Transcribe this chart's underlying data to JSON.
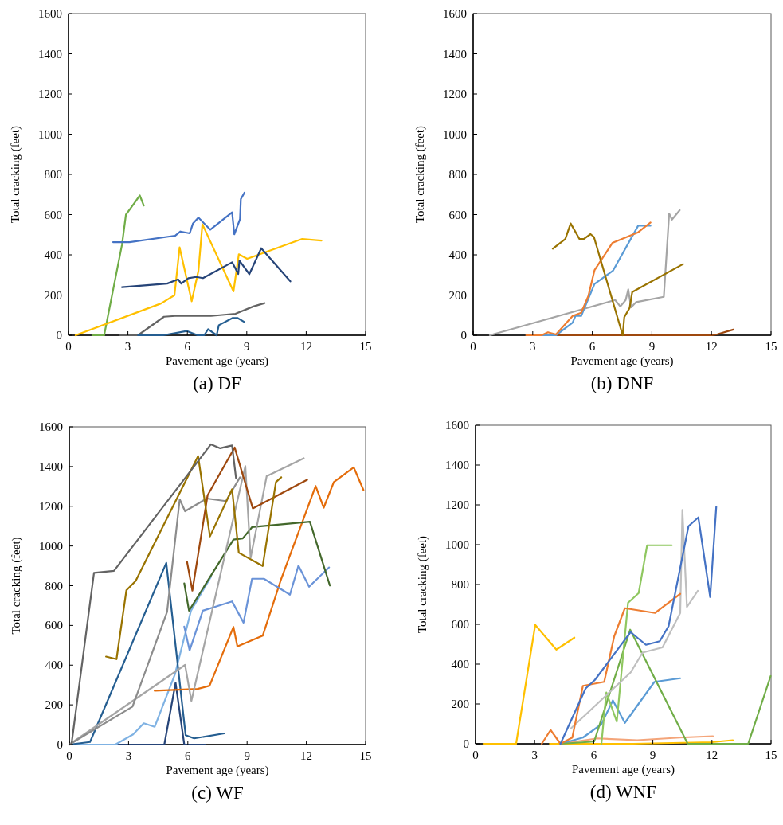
{
  "chart_data": [
    {
      "type": "line",
      "title": "(a) DF",
      "xlabel": "Pavement age (years)",
      "ylabel": "Total cracking (feet)",
      "xlim": [
        0,
        15
      ],
      "xticks": [
        0,
        3,
        6,
        9,
        12,
        15
      ],
      "ylim": [
        0,
        1600
      ],
      "yticks": [
        0,
        200,
        400,
        600,
        800,
        1000,
        1200,
        1400,
        1600
      ],
      "series": [
        {
          "color": "#70ad47",
          "x": [
            1.2,
            1.8,
            2.7,
            2.9,
            3.2,
            3.6,
            3.8
          ],
          "values": [
            0,
            0,
            450,
            600,
            640,
            695,
            645
          ]
        },
        {
          "color": "#4472c4",
          "x": [
            2.25,
            3.08,
            5.38,
            5.65,
            6.12,
            6.28,
            6.56,
            7.16,
            8.26,
            8.37,
            8.66,
            8.7,
            8.88
          ],
          "values": [
            463,
            463,
            495,
            516,
            507,
            555,
            585,
            525,
            611,
            502,
            578,
            677,
            709
          ]
        },
        {
          "color": "#ffc000",
          "x": [
            0.36,
            4.67,
            5.35,
            5.61,
            6.22,
            6.56,
            6.76,
            8.33,
            8.6,
            9.02,
            11.8,
            12.77
          ],
          "values": [
            0,
            158,
            199,
            437,
            169,
            321,
            552,
            218,
            403,
            380,
            479,
            471
          ]
        },
        {
          "color": "#264478",
          "x": [
            2.7,
            4.98,
            5.54,
            5.69,
            6.05,
            6.45,
            6.79,
            8.26,
            8.57,
            8.63,
            9.13,
            9.73,
            11.2
          ],
          "values": [
            239,
            257,
            278,
            257,
            284,
            290,
            284,
            363,
            305,
            371,
            304,
            433,
            268
          ]
        },
        {
          "color": "#636363",
          "x": [
            2.61,
            3.51,
            4.82,
            5.38,
            7.19,
            8.43,
            9.33,
            9.9
          ],
          "values": [
            0,
            0,
            92,
            96,
            96,
            107,
            143,
            160
          ]
        },
        {
          "color": "#255e91",
          "x": [
            3.51,
            4.78,
            5.98,
            6.52,
            6.85,
            7.05,
            7.48,
            7.59,
            8.29,
            8.53,
            8.86
          ],
          "values": [
            0,
            0,
            21,
            0,
            0,
            30,
            0,
            50,
            86,
            86,
            67
          ]
        }
      ]
    },
    {
      "type": "line",
      "title": "(b) DNF",
      "xlabel": "Pavement age (years)",
      "ylabel": "Total cracking (feet)",
      "xlim": [
        0,
        15
      ],
      "xticks": [
        0,
        3,
        6,
        9,
        12,
        15
      ],
      "ylim": [
        0,
        1600
      ],
      "yticks": [
        0,
        200,
        400,
        600,
        800,
        1000,
        1200,
        1400,
        1600
      ],
      "series": [
        {
          "color": "#9e480e",
          "x": [
            4.2,
            12,
            12.3,
            13.1
          ],
          "values": [
            0,
            0,
            5,
            28
          ]
        },
        {
          "color": "#a5a5a5",
          "x": [
            0.84,
            7.15,
            7.41,
            7.68,
            7.81,
            7.95,
            8.21,
            9.6,
            9.87,
            10.01,
            10.4
          ],
          "values": [
            0,
            175,
            143,
            175,
            228,
            139,
            165,
            191,
            605,
            575,
            622
          ]
        },
        {
          "color": "#5b9bd5",
          "x": [
            3.17,
            4.17,
            5.01,
            5.15,
            5.44,
            6.11,
            7.04,
            8.31,
            8.93
          ],
          "values": [
            0,
            0,
            63,
            96,
            96,
            255,
            321,
            545,
            545
          ]
        },
        {
          "color": "#ed7d31",
          "x": [
            2.67,
            3.44,
            3.77,
            4.17,
            5.01,
            5.44,
            5.8,
            6.11,
            7.01,
            8.31,
            8.93
          ],
          "values": [
            0,
            0,
            15,
            4,
            96,
            112,
            195,
            323,
            459,
            512,
            561
          ]
        },
        {
          "color": "#997300",
          "x": [
            4.01,
            4.64,
            4.91,
            5.35,
            5.57,
            5.91,
            6.08,
            7.53,
            7.61,
            7.88,
            8.01,
            10.57
          ],
          "values": [
            430,
            479,
            556,
            479,
            479,
            503,
            489,
            0,
            90,
            136,
            215,
            354
          ]
        }
      ]
    },
    {
      "type": "line",
      "title": "(c) WF",
      "xlabel": "Pavement age (years)",
      "ylabel": "Total cracking (feet)",
      "xlim": [
        0,
        15
      ],
      "xticks": [
        0,
        3,
        6,
        9,
        12,
        15
      ],
      "ylim": [
        0,
        1600
      ],
      "yticks": [
        0,
        200,
        400,
        600,
        800,
        1000,
        1200,
        1400,
        1600
      ],
      "series": [
        {
          "color": "#264478",
          "x": [
            0,
            4.81,
            5.38,
            5.82,
            6.9
          ],
          "values": [
            0,
            0,
            311,
            0,
            0
          ]
        },
        {
          "color": "#7fb2e3",
          "x": [
            0,
            2.33,
            3.23,
            3.77,
            4.32,
            5.35,
            6.16,
            7.17
          ],
          "values": [
            0,
            0,
            51,
            107,
            89,
            354,
            674,
            844
          ]
        },
        {
          "color": "#255e91",
          "x": [
            0,
            1.05,
            4.91,
            5.89,
            6.32,
            7.84
          ],
          "values": [
            0,
            13,
            915,
            47,
            31,
            56
          ]
        },
        {
          "color": "#e46c0a",
          "x": [
            4.32,
            6.49,
            7.1,
            8.31,
            8.51,
            9.79,
            10.73,
            12.47,
            12.88,
            13.39,
            14.4,
            14.89
          ],
          "values": [
            271,
            280,
            296,
            592,
            494,
            548,
            835,
            1302,
            1193,
            1322,
            1396,
            1282
          ]
        },
        {
          "color": "#6a93d8",
          "x": [
            5.82,
            6.09,
            6.76,
            8.24,
            8.82,
            9.25,
            9.85,
            11.17,
            11.6,
            12.14,
            13.15
          ],
          "values": [
            594,
            474,
            674,
            721,
            614,
            835,
            835,
            755,
            901,
            795,
            892
          ]
        },
        {
          "color": "#43682b",
          "x": [
            5.82,
            6.06,
            8.31,
            8.78,
            9.25,
            12.18,
            13.19
          ],
          "values": [
            812,
            674,
            1032,
            1038,
            1095,
            1122,
            801
          ]
        },
        {
          "color": "#a5a5a5",
          "x": [
            0,
            5.86,
            6.18,
            8.91,
            9.18,
            9.99,
            11.87
          ],
          "values": [
            0,
            401,
            220,
            1402,
            941,
            1351,
            1442
          ]
        },
        {
          "color": "#8c8c8c",
          "x": [
            0,
            3.2,
            4.95,
            5.59,
            5.86,
            6.96,
            7.93,
            8.64
          ],
          "values": [
            0,
            191,
            668,
            1235,
            1175,
            1239,
            1226,
            1346
          ]
        },
        {
          "color": "#9e480e",
          "x": [
            5.96,
            6.23,
            7.0,
            8.37,
            9.29,
            12.04
          ],
          "values": [
            921,
            775,
            1255,
            1496,
            1189,
            1333
          ]
        },
        {
          "color": "#997300",
          "x": [
            1.86,
            2.39,
            2.89,
            3.36,
            6.52,
            7.12,
            8.24,
            8.58,
            9.79,
            10.46,
            10.73
          ],
          "values": [
            443,
            430,
            777,
            824,
            1453,
            1048,
            1286,
            966,
            899,
            1322,
            1346
          ]
        },
        {
          "color": "#636363",
          "x": [
            0.11,
            1.25,
            2.26,
            7.17,
            7.64,
            8.24,
            8.44
          ],
          "values": [
            0,
            865,
            875,
            1512,
            1492,
            1506,
            1342
          ]
        }
      ]
    },
    {
      "type": "line",
      "title": "(d) WNF",
      "xlabel": "Pavement age (years)",
      "ylabel": "Total cracking (feet)",
      "xlim": [
        0,
        15
      ],
      "xticks": [
        0,
        3,
        6,
        9,
        12,
        15
      ],
      "ylim": [
        0,
        1600
      ],
      "yticks": [
        0,
        200,
        400,
        600,
        800,
        1000,
        1200,
        1400,
        1600
      ],
      "series": [
        {
          "color": "#ffc000",
          "x": [
            3.77,
            8,
            10.5,
            12,
            13.06
          ],
          "values": [
            0,
            0,
            5,
            8,
            18
          ]
        },
        {
          "color": "#f4a57a",
          "x": [
            4.31,
            6.19,
            8.21,
            10.36,
            12.05
          ],
          "values": [
            0,
            27,
            18,
            31,
            38
          ]
        },
        {
          "color": "#5b9bd5",
          "x": [
            4.31,
            5.45,
            6.39,
            6.97,
            7.58,
            9.08,
            10.39
          ],
          "values": [
            0,
            31,
            98,
            218,
            105,
            311,
            329
          ]
        },
        {
          "color": "#70ad47",
          "x": [
            4.31,
            6.02,
            7.85,
            10.77,
            13.84,
            14.98
          ],
          "values": [
            0,
            11,
            573,
            0,
            0,
            340
          ]
        },
        {
          "color": "#8fc760",
          "x": [
            6.39,
            6.64,
            7.17,
            7.74,
            8.28,
            8.71,
            9.96
          ],
          "values": [
            0,
            258,
            111,
            708,
            757,
            997,
            997
          ]
        },
        {
          "color": "#bfbfbf",
          "x": [
            4.85,
            7.87,
            8.48,
            9.49,
            10.39,
            10.5,
            10.73,
            11.28
          ],
          "values": [
            78,
            358,
            458,
            484,
            657,
            1175,
            687,
            768
          ]
        },
        {
          "color": "#ed7d31",
          "x": [
            3.36,
            3.81,
            4.31,
            4.91,
            5.45,
            6.53,
            7.04,
            7.58,
            9.11,
            10.39
          ],
          "values": [
            0,
            69,
            0,
            31,
            291,
            311,
            540,
            681,
            657,
            753
          ]
        },
        {
          "color": "#4472c4",
          "x": [
            4.31,
            5.59,
            6.06,
            7.87,
            8.65,
            9.35,
            9.8,
            10.81,
            11.31,
            11.91,
            12.22
          ],
          "values": [
            0,
            278,
            321,
            561,
            497,
            515,
            591,
            1093,
            1137,
            737,
            1191
          ]
        },
        {
          "color": "#ffc000",
          "x": [
            0.4,
            2.06,
            3.03,
            4.1,
            5.02
          ],
          "values": [
            0,
            0,
            597,
            473,
            533
          ]
        }
      ]
    }
  ]
}
